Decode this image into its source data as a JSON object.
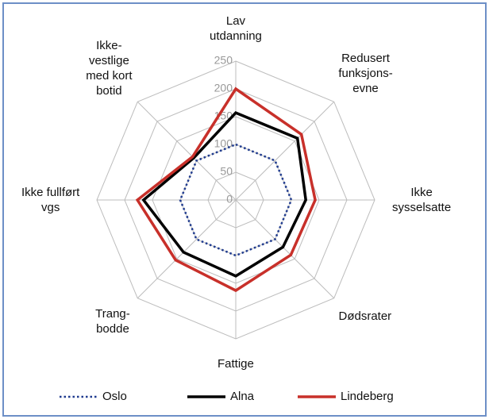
{
  "chart_data": {
    "type": "radar",
    "categories": [
      "Lav\nutdanning",
      "Redusert\nfunksjons-\nevne",
      "Ikke\nsysselsatte",
      "Dødsrater",
      "Fattige",
      "Trang-\nbodde",
      "Ikke fullført\nvgs",
      "Ikke-\nvestlige\nmed kort\nbotid"
    ],
    "series": [
      {
        "name": "Oslo",
        "color": "#1f3b8f",
        "dash": "dotted",
        "values": [
          100,
          100,
          100,
          100,
          100,
          100,
          100,
          100
        ]
      },
      {
        "name": "Alna",
        "color": "#000000",
        "dash": "solid",
        "values": [
          157,
          157,
          126,
          120,
          137,
          133,
          166,
          107
        ]
      },
      {
        "name": "Lindeberg",
        "color": "#c8302a",
        "dash": "solid",
        "values": [
          200,
          167,
          143,
          140,
          163,
          153,
          177,
          110
        ]
      }
    ],
    "ylim": [
      0,
      250
    ],
    "yticks": [
      0,
      50,
      100,
      150,
      200,
      250
    ],
    "grid": true,
    "legend": "bottom"
  }
}
